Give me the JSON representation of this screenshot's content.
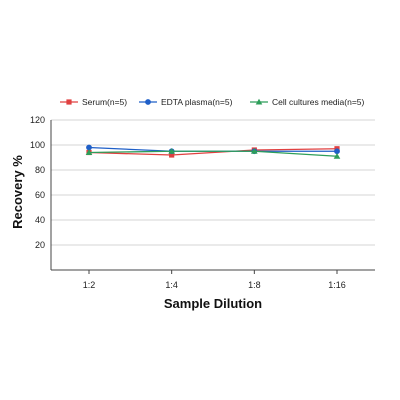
{
  "chart_data": {
    "type": "line",
    "title": "",
    "xlabel": "Sample Dilution",
    "ylabel": "Recovery %",
    "categories": [
      "1:2",
      "1:4",
      "1:8",
      "1:16"
    ],
    "ylim": [
      0,
      120
    ],
    "yticks": [
      20,
      40,
      60,
      80,
      100,
      120
    ],
    "grid": true,
    "legend_position": "top",
    "series": [
      {
        "name": "Serum(n=5)",
        "values": [
          94,
          92,
          96,
          97
        ],
        "color": "#e04040",
        "marker": "square"
      },
      {
        "name": "EDTA plasma(n=5)",
        "values": [
          98,
          95,
          95,
          95
        ],
        "color": "#1f5fc8",
        "marker": "circle"
      },
      {
        "name": "Cell cultures media(n=5)",
        "values": [
          94,
          95,
          95,
          91
        ],
        "color": "#2e9e5a",
        "marker": "triangle"
      }
    ]
  }
}
